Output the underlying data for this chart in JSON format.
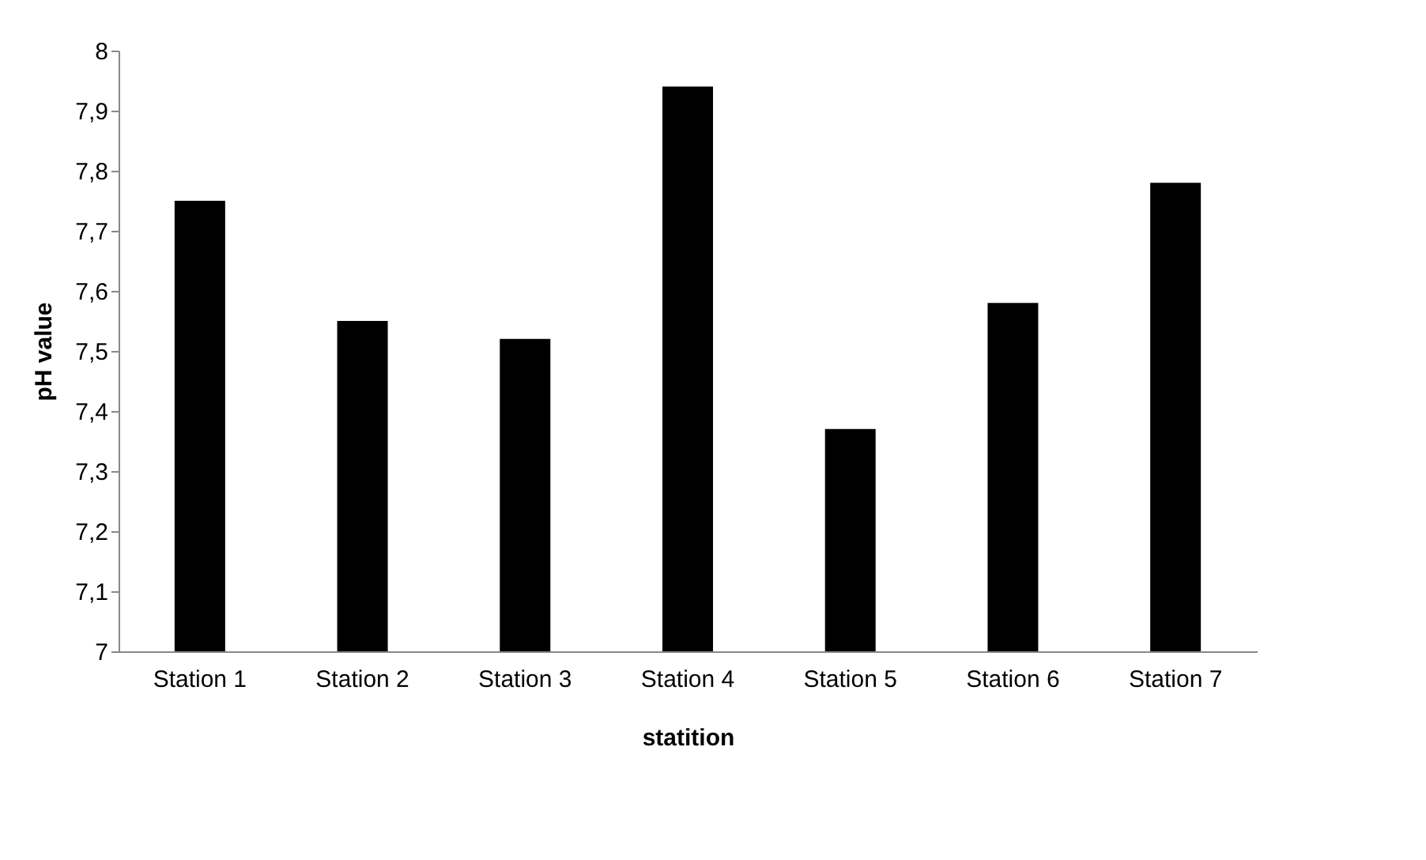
{
  "chart_data": {
    "type": "bar",
    "xlabel": "statition",
    "ylabel": "pH value",
    "categories": [
      "Station 1",
      "Station 2",
      "Station 3",
      "Station 4",
      "Station 5",
      "Station 6",
      "Station 7"
    ],
    "values": [
      7.75,
      7.55,
      7.52,
      7.94,
      7.37,
      7.58,
      7.78
    ],
    "color": "#000000",
    "ylim": [
      7,
      8
    ],
    "yticks": [
      {
        "value": 7,
        "label": "7"
      },
      {
        "value": 7.1,
        "label": "7,1"
      },
      {
        "value": 7.2,
        "label": "7,2"
      },
      {
        "value": 7.3,
        "label": "7,3"
      },
      {
        "value": 7.4,
        "label": "7,4"
      },
      {
        "value": 7.5,
        "label": "7,5"
      },
      {
        "value": 7.6,
        "label": "7,6"
      },
      {
        "value": 7.7,
        "label": "7,7"
      },
      {
        "value": 7.8,
        "label": "7,8"
      },
      {
        "value": 7.9,
        "label": "7,9"
      },
      {
        "value": 8,
        "label": "8"
      }
    ],
    "grid": false
  }
}
